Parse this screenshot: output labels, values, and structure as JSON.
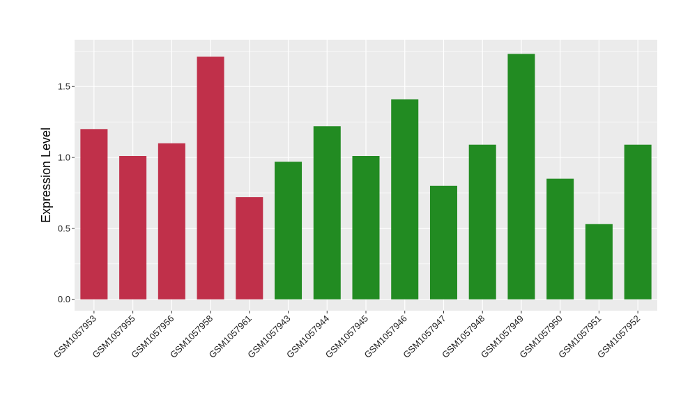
{
  "chart_data": {
    "type": "bar",
    "title": "",
    "xlabel": "",
    "ylabel": "Expression Level",
    "ylim": [
      -0.08,
      1.83
    ],
    "yticks": [
      "0.0",
      "0.5",
      "1.0",
      "1.5"
    ],
    "ytick_values": [
      0.0,
      0.5,
      1.0,
      1.5
    ],
    "grid": true,
    "legend": "none",
    "categories": [
      "GSM1057953",
      "GSM1057955",
      "GSM1057956",
      "GSM1057958",
      "GSM1057961",
      "GSM1057943",
      "GSM1057944",
      "GSM1057945",
      "GSM1057946",
      "GSM1057947",
      "GSM1057948",
      "GSM1057949",
      "GSM1057950",
      "GSM1057951",
      "GSM1057952"
    ],
    "values": [
      1.2,
      1.01,
      1.1,
      1.71,
      0.72,
      0.97,
      1.22,
      1.01,
      1.41,
      0.8,
      1.09,
      1.73,
      0.85,
      0.53,
      1.09
    ],
    "group_index": [
      0,
      0,
      0,
      0,
      0,
      1,
      1,
      1,
      1,
      1,
      1,
      1,
      1,
      1,
      1
    ],
    "group_colors": [
      "#c0304a",
      "#228b22"
    ],
    "panel_background": "#ebebeb",
    "grid_color": "#ffffff"
  }
}
